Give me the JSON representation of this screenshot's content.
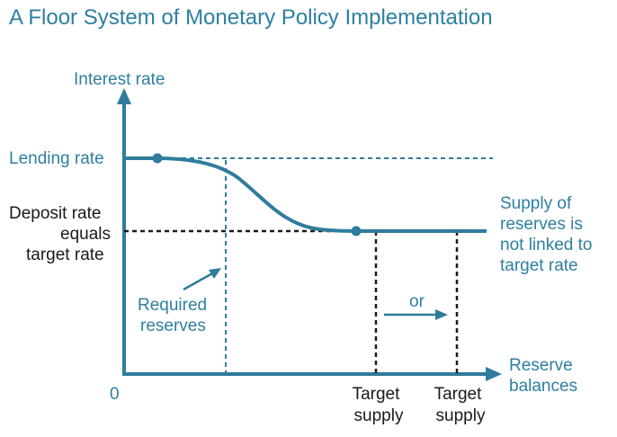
{
  "title": "A Floor System of Monetary Policy Implementation",
  "y_axis_label": "Interest rate",
  "x_axis_label": [
    "Reserve",
    "balances"
  ],
  "origin_label": "0",
  "lending_rate_label": "Lending rate",
  "deposit_rate_label": [
    "Deposit rate",
    "equals",
    "target rate"
  ],
  "supply_note": [
    "Supply of",
    "reserves is",
    "not linked to",
    "target rate"
  ],
  "required_reserves_label": [
    "Required",
    "reserves"
  ],
  "or_label": "or",
  "target_supply_1": [
    "Target",
    "supply"
  ],
  "target_supply_2": [
    "Target",
    "supply"
  ],
  "colors": {
    "accent": "#2e7fa0",
    "curve": "#2f7c9c",
    "axis": "#2f7c9c",
    "text_dark": "#1a1a1a",
    "dashed_dark": "#1a1a1a"
  }
}
